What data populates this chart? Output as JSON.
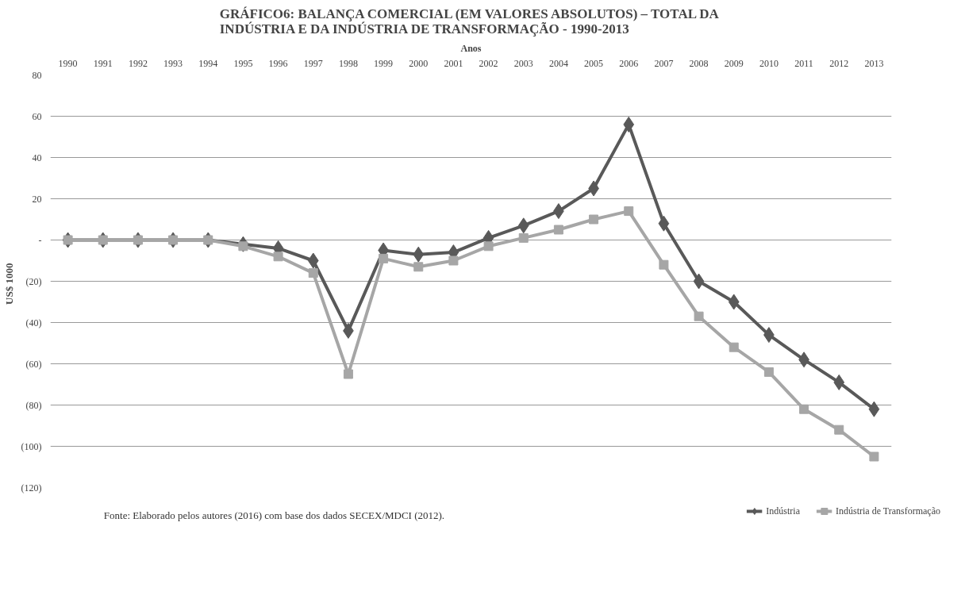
{
  "chart_data": {
    "type": "line",
    "title": "GRÁFICO6: BALANÇA COMERCIAL (EM VALORES ABSOLUTOS) – TOTAL DA INDÚSTRIA E DA INDÚSTRIA DE TRANSFORMAÇÃO - 1990-2013",
    "xlabel": "Anos",
    "ylabel": "US$   1000",
    "categories": [
      "1990",
      "1991",
      "1992",
      "1993",
      "1994",
      "1995",
      "1996",
      "1997",
      "1998",
      "1999",
      "2000",
      "2001",
      "2002",
      "2003",
      "2004",
      "2005",
      "2006",
      "2007",
      "2008",
      "2009",
      "2010",
      "2011",
      "2012",
      "2013"
    ],
    "series": [
      {
        "name": "Indústria",
        "color": "#595959",
        "marker": "diamond",
        "values": [
          0,
          0,
          0,
          0,
          0,
          -2,
          -4,
          -10,
          -44,
          -5,
          -7,
          -6,
          1,
          7,
          14,
          25,
          56,
          8,
          -20,
          -30,
          -46,
          -58,
          -69,
          -82
        ]
      },
      {
        "name": "Indústria de Transformação",
        "color": "#a6a6a6",
        "marker": "square",
        "values": [
          0,
          0,
          0,
          0,
          0,
          -3,
          -8,
          -16,
          -65,
          -9,
          -13,
          -10,
          -3,
          1,
          5,
          10,
          14,
          -12,
          -37,
          -52,
          -64,
          -82,
          -92,
          -105
        ]
      }
    ],
    "ylim": [
      -120,
      80
    ],
    "yticks": [
      {
        "value": -120,
        "label": "(120)"
      },
      {
        "value": -100,
        "label": "(100)"
      },
      {
        "value": -80,
        "label": "(80)"
      },
      {
        "value": -60,
        "label": "(60)"
      },
      {
        "value": -40,
        "label": "(40)"
      },
      {
        "value": -20,
        "label": "(20)"
      },
      {
        "value": 0,
        "label": "-"
      },
      20,
      40,
      60,
      80
    ],
    "grid": "y",
    "legend": "bottom right",
    "line_style": "solid",
    "annotations": [
      "Fonte: Elaborado pelos autores (2016) com base dos dados SECEX/MDCI (2012)."
    ]
  }
}
